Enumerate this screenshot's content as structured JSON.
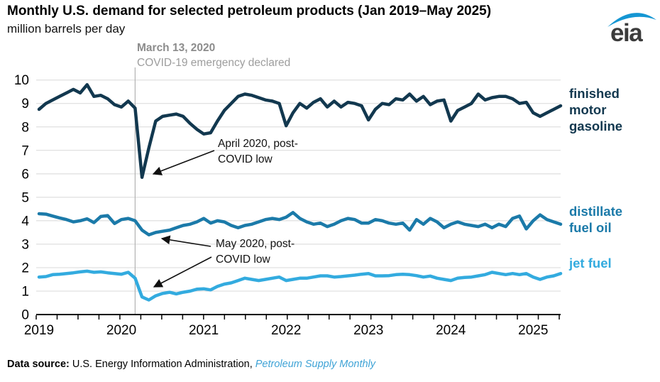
{
  "header": {
    "title": "Monthly U.S. demand for selected petroleum products (Jan 2019–May 2025)",
    "subtitle": "million barrels per day"
  },
  "logo": {
    "text": "eia"
  },
  "event_annotation": {
    "date": "March 13, 2020",
    "description": "COVID-19 emergency declared"
  },
  "callouts": {
    "gasoline_low": "April 2020, post-\nCOVID low",
    "distillate_jet_low": "May 2020, post-\nCOVID low"
  },
  "series_labels": {
    "gasoline": "finished\nmotor\ngasoline",
    "distillate": "distillate\nfuel oil",
    "jet": "jet fuel"
  },
  "footer": {
    "label": "Data source:",
    "text": " U.S. Energy Information Administration, ",
    "publication": "Petroleum Supply Monthly"
  },
  "colors": {
    "gasoline": "#12384f",
    "distillate": "#1b7aa9",
    "jet": "#33abdf",
    "grid": "#d8d8d8",
    "event_line": "#b3b3b3",
    "axis": "#000000",
    "text": "#000000",
    "annotation_gray": "#8c8c8c",
    "logo_blue": "#1496d3",
    "logo_gray": "#3b3b3b",
    "publication_blue": "#3fa3d6"
  },
  "chart_data": {
    "type": "line",
    "title": "Monthly U.S. demand for selected petroleum products (Jan 2019–May 2025)",
    "ylabel": "million barrels per day",
    "ylim": [
      0,
      10
    ],
    "y_ticks": [
      0,
      1,
      2,
      3,
      4,
      5,
      6,
      7,
      8,
      9,
      10
    ],
    "x_tick_labels": [
      "2019",
      "2020",
      "2021",
      "2022",
      "2023",
      "2024",
      "2025"
    ],
    "x_frequency": "monthly",
    "x_range": [
      "2019-01",
      "2025-05"
    ],
    "grid": "horizontal",
    "legend_position": "right-of-lines",
    "event_line": {
      "date": "2020-03-13",
      "month_index": 14
    },
    "series": [
      {
        "name": "finished motor gasoline",
        "color": "#12384f",
        "values": [
          8.75,
          9.0,
          9.15,
          9.3,
          9.45,
          9.6,
          9.45,
          9.8,
          9.3,
          9.35,
          9.2,
          8.95,
          8.85,
          9.1,
          8.8,
          5.85,
          7.1,
          8.25,
          8.45,
          8.5,
          8.55,
          8.45,
          8.15,
          7.9,
          7.7,
          7.75,
          8.25,
          8.7,
          9.0,
          9.3,
          9.4,
          9.35,
          9.25,
          9.15,
          9.1,
          9.0,
          8.05,
          8.6,
          9.0,
          8.8,
          9.05,
          9.2,
          8.85,
          9.1,
          8.85,
          9.05,
          9.0,
          8.9,
          8.3,
          8.75,
          9.0,
          8.95,
          9.2,
          9.15,
          9.4,
          9.1,
          9.3,
          8.95,
          9.1,
          9.15,
          8.25,
          8.7,
          8.85,
          9.0,
          9.4,
          9.15,
          9.25,
          9.3,
          9.3,
          9.2,
          9.0,
          9.05,
          8.6,
          8.45,
          8.6,
          8.75,
          8.9
        ]
      },
      {
        "name": "distillate fuel oil",
        "color": "#1b7aa9",
        "values": [
          4.3,
          4.28,
          4.2,
          4.12,
          4.05,
          3.95,
          4.0,
          4.08,
          3.92,
          4.18,
          4.22,
          3.88,
          4.05,
          4.1,
          4.0,
          3.6,
          3.4,
          3.5,
          3.55,
          3.6,
          3.7,
          3.8,
          3.85,
          3.95,
          4.1,
          3.9,
          4.0,
          3.95,
          3.8,
          3.7,
          3.8,
          3.85,
          3.95,
          4.05,
          4.1,
          4.05,
          4.15,
          4.35,
          4.1,
          3.95,
          3.85,
          3.9,
          3.75,
          3.85,
          4.0,
          4.1,
          4.05,
          3.9,
          3.9,
          4.05,
          4.0,
          3.9,
          3.85,
          3.9,
          3.6,
          4.05,
          3.85,
          4.1,
          3.95,
          3.7,
          3.85,
          3.95,
          3.85,
          3.8,
          3.75,
          3.85,
          3.7,
          3.85,
          3.75,
          4.1,
          4.2,
          3.65,
          4.0,
          4.25,
          4.05,
          3.95,
          3.85
        ]
      },
      {
        "name": "jet fuel",
        "color": "#33abdf",
        "values": [
          1.6,
          1.62,
          1.7,
          1.72,
          1.75,
          1.78,
          1.82,
          1.85,
          1.8,
          1.82,
          1.78,
          1.75,
          1.72,
          1.8,
          1.55,
          0.75,
          0.62,
          0.8,
          0.9,
          0.95,
          0.88,
          0.95,
          1.0,
          1.08,
          1.1,
          1.05,
          1.2,
          1.3,
          1.35,
          1.45,
          1.55,
          1.5,
          1.45,
          1.5,
          1.55,
          1.6,
          1.45,
          1.5,
          1.55,
          1.55,
          1.6,
          1.65,
          1.65,
          1.6,
          1.62,
          1.65,
          1.68,
          1.72,
          1.75,
          1.65,
          1.65,
          1.66,
          1.7,
          1.72,
          1.7,
          1.66,
          1.6,
          1.64,
          1.55,
          1.5,
          1.45,
          1.55,
          1.58,
          1.6,
          1.65,
          1.7,
          1.8,
          1.75,
          1.7,
          1.75,
          1.7,
          1.75,
          1.6,
          1.5,
          1.6,
          1.65,
          1.75
        ]
      }
    ],
    "annotations": [
      {
        "text": "April 2020, post-COVID low",
        "series": "finished motor gasoline",
        "point": "2020-04",
        "value": 5.85
      },
      {
        "text": "May 2020, post-COVID low",
        "series": "distillate fuel oil",
        "point": "2020-05",
        "value": 3.4
      },
      {
        "text": "May 2020, post-COVID low",
        "series": "jet fuel",
        "point": "2020-05",
        "value": 0.62
      }
    ]
  }
}
